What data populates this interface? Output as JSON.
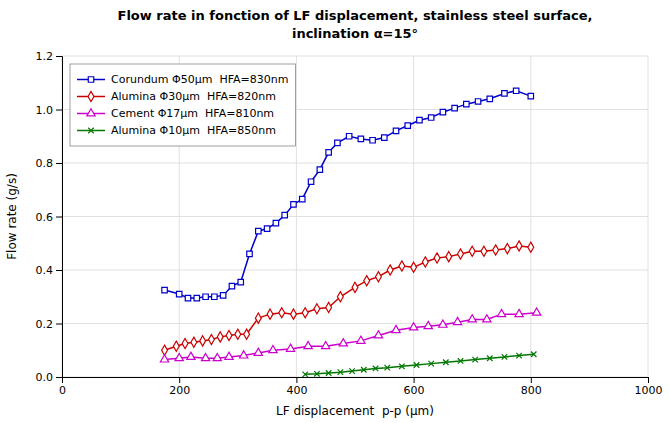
{
  "chart_data": {
    "type": "line",
    "title": "Flow rate in fonction of LF displacement, stainless steel surface,",
    "subtitle": "inclination α=15°",
    "x_label": "LF displacement  p-p (μm)",
    "y_label": "Flow rate (g/s)",
    "xlim": [
      0,
      1000
    ],
    "ylim": [
      0,
      1.2
    ],
    "xticks": [
      0,
      200,
      400,
      600,
      800,
      1000
    ],
    "yticks": [
      {
        "value": 0,
        "label": "0.0"
      },
      0.2,
      0.4,
      0.6,
      0.8,
      {
        "value": 1.0,
        "label": "1.0"
      },
      1.2
    ],
    "grid": true,
    "legend": "upper left",
    "series": [
      {
        "name": "Corundum Φ50μm  HFA=830nm",
        "color": "#0000CC",
        "marker": "square",
        "x": [
          175,
          200,
          215,
          230,
          245,
          260,
          275,
          290,
          305,
          320,
          335,
          350,
          365,
          380,
          395,
          410,
          425,
          440,
          455,
          470,
          490,
          510,
          530,
          550,
          570,
          590,
          610,
          630,
          650,
          670,
          690,
          710,
          730,
          755,
          775,
          800
        ],
        "values": [
          0.325,
          0.31,
          0.295,
          0.295,
          0.3,
          0.3,
          0.305,
          0.34,
          0.355,
          0.46,
          0.545,
          0.555,
          0.575,
          0.605,
          0.645,
          0.665,
          0.73,
          0.775,
          0.84,
          0.875,
          0.9,
          0.89,
          0.885,
          0.895,
          0.92,
          0.94,
          0.96,
          0.97,
          0.99,
          1.005,
          1.02,
          1.03,
          1.04,
          1.06,
          1.07,
          1.05
        ]
      },
      {
        "name": "Alumina Φ30μm  HFA=820nm",
        "color": "#CC0000",
        "marker": "diamond",
        "x": [
          175,
          195,
          210,
          225,
          240,
          255,
          270,
          285,
          300,
          315,
          335,
          355,
          375,
          395,
          415,
          435,
          455,
          475,
          500,
          520,
          540,
          560,
          580,
          600,
          620,
          640,
          660,
          680,
          700,
          720,
          740,
          760,
          780,
          800
        ],
        "values": [
          0.1,
          0.115,
          0.125,
          0.13,
          0.135,
          0.14,
          0.15,
          0.155,
          0.16,
          0.16,
          0.22,
          0.235,
          0.24,
          0.235,
          0.24,
          0.255,
          0.26,
          0.3,
          0.335,
          0.36,
          0.375,
          0.4,
          0.415,
          0.41,
          0.43,
          0.445,
          0.45,
          0.46,
          0.47,
          0.47,
          0.475,
          0.48,
          0.49,
          0.485
        ]
      },
      {
        "name": "Cement Φ17μm  HFA=810nm",
        "color": "#CC00CC",
        "marker": "triangle",
        "x": [
          175,
          200,
          220,
          245,
          265,
          285,
          310,
          335,
          360,
          390,
          420,
          450,
          480,
          510,
          540,
          570,
          600,
          625,
          650,
          675,
          700,
          725,
          750,
          780,
          810
        ],
        "values": [
          0.065,
          0.07,
          0.075,
          0.07,
          0.07,
          0.075,
          0.08,
          0.09,
          0.1,
          0.105,
          0.115,
          0.115,
          0.125,
          0.135,
          0.155,
          0.175,
          0.185,
          0.19,
          0.195,
          0.205,
          0.215,
          0.215,
          0.235,
          0.235,
          0.24
        ]
      },
      {
        "name": "Alumina Φ10μm  HFA=850nm",
        "color": "#007700",
        "marker": "x",
        "x": [
          415,
          435,
          455,
          475,
          495,
          515,
          535,
          555,
          580,
          605,
          630,
          655,
          680,
          705,
          730,
          755,
          780,
          805
        ],
        "values": [
          0.01,
          0.012,
          0.015,
          0.018,
          0.022,
          0.027,
          0.032,
          0.035,
          0.04,
          0.045,
          0.05,
          0.055,
          0.06,
          0.065,
          0.07,
          0.075,
          0.08,
          0.085
        ]
      }
    ]
  }
}
